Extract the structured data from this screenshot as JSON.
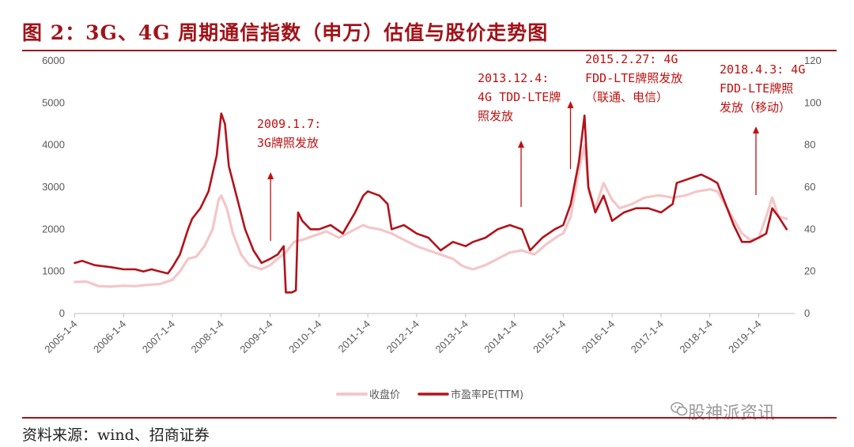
{
  "figure": {
    "title": "图 2：3G、4G 周期通信指数（申万）估值与股价走势图",
    "source": "资料来源：wind、招商证券",
    "watermark": "股神派资讯"
  },
  "colors": {
    "accent": "#a0141a",
    "close_series": "#f4c6c8",
    "pe_series": "#b3121a",
    "annotation": "#c01010"
  },
  "icons": {
    "watermark_icon": "wechat-icon"
  },
  "chart_data": {
    "type": "line",
    "x_ticks": [
      "2005-1-4",
      "2006-1-4",
      "2007-1-4",
      "2008-1-4",
      "2009-1-4",
      "2010-1-4",
      "2011-1-4",
      "2012-1-4",
      "2013-1-4",
      "2014-1-4",
      "2015-1-4",
      "2016-1-4",
      "2017-1-4",
      "2018-1-4",
      "2019-1-4"
    ],
    "x_range": [
      "2005-01-01",
      "2019-09-30"
    ],
    "y_left": {
      "ticks": [
        "0",
        "1000",
        "2000",
        "3000",
        "4000",
        "5000",
        "6000"
      ],
      "range": [
        0,
        6000
      ]
    },
    "y_right": {
      "ticks": [
        "0",
        "20",
        "40",
        "60",
        "80",
        "100",
        "120"
      ],
      "range": [
        0,
        120
      ]
    },
    "legend_position": "bottom",
    "grid": false,
    "series": [
      {
        "name": "收盘价",
        "axis": "left",
        "points": [
          [
            "2005-01-04",
            750
          ],
          [
            "2005-04-01",
            760
          ],
          [
            "2005-07-01",
            650
          ],
          [
            "2005-10-01",
            640
          ],
          [
            "2006-01-04",
            660
          ],
          [
            "2006-04-01",
            650
          ],
          [
            "2006-07-01",
            680
          ],
          [
            "2006-10-01",
            700
          ],
          [
            "2007-01-04",
            800
          ],
          [
            "2007-03-01",
            1000
          ],
          [
            "2007-05-01",
            1300
          ],
          [
            "2007-07-01",
            1350
          ],
          [
            "2007-09-01",
            1600
          ],
          [
            "2007-11-01",
            2000
          ],
          [
            "2007-12-15",
            2700
          ],
          [
            "2008-01-04",
            2800
          ],
          [
            "2008-02-15",
            2500
          ],
          [
            "2008-04-01",
            1900
          ],
          [
            "2008-06-01",
            1400
          ],
          [
            "2008-08-01",
            1150
          ],
          [
            "2008-11-01",
            1050
          ],
          [
            "2009-01-04",
            1150
          ],
          [
            "2009-03-01",
            1300
          ],
          [
            "2009-05-01",
            1450
          ],
          [
            "2009-07-01",
            1700
          ],
          [
            "2009-09-01",
            1750
          ],
          [
            "2009-12-01",
            1850
          ],
          [
            "2010-03-01",
            1950
          ],
          [
            "2010-06-01",
            1800
          ],
          [
            "2010-09-01",
            1950
          ],
          [
            "2010-12-01",
            2100
          ],
          [
            "2011-01-04",
            2050
          ],
          [
            "2011-04-01",
            2000
          ],
          [
            "2011-07-01",
            1900
          ],
          [
            "2011-10-01",
            1750
          ],
          [
            "2012-01-04",
            1600
          ],
          [
            "2012-04-01",
            1500
          ],
          [
            "2012-07-01",
            1400
          ],
          [
            "2012-10-01",
            1300
          ],
          [
            "2012-12-01",
            1150
          ],
          [
            "2013-01-04",
            1100
          ],
          [
            "2013-03-01",
            1050
          ],
          [
            "2013-06-01",
            1150
          ],
          [
            "2013-09-01",
            1300
          ],
          [
            "2013-12-01",
            1450
          ],
          [
            "2014-03-01",
            1500
          ],
          [
            "2014-06-01",
            1400
          ],
          [
            "2014-09-01",
            1650
          ],
          [
            "2014-12-01",
            1850
          ],
          [
            "2015-01-04",
            1900
          ],
          [
            "2015-03-01",
            2300
          ],
          [
            "2015-05-01",
            3400
          ],
          [
            "2015-06-12",
            4000
          ],
          [
            "2015-07-15",
            2900
          ],
          [
            "2015-09-01",
            2500
          ],
          [
            "2015-11-01",
            3100
          ],
          [
            "2016-01-04",
            2700
          ],
          [
            "2016-03-01",
            2500
          ],
          [
            "2016-06-01",
            2600
          ],
          [
            "2016-09-01",
            2750
          ],
          [
            "2016-12-01",
            2800
          ],
          [
            "2017-01-04",
            2800
          ],
          [
            "2017-04-01",
            2750
          ],
          [
            "2017-07-01",
            2800
          ],
          [
            "2017-10-01",
            2900
          ],
          [
            "2018-01-04",
            2950
          ],
          [
            "2018-03-01",
            2900
          ],
          [
            "2018-06-01",
            2400
          ],
          [
            "2018-09-01",
            1900
          ],
          [
            "2018-11-01",
            1750
          ],
          [
            "2019-01-04",
            1800
          ],
          [
            "2019-03-01",
            2300
          ],
          [
            "2019-04-15",
            2750
          ],
          [
            "2019-06-01",
            2300
          ],
          [
            "2019-08-01",
            2250
          ]
        ]
      },
      {
        "name": "市盈率PE(TTM)",
        "axis": "right",
        "points": [
          [
            "2005-01-04",
            24
          ],
          [
            "2005-03-01",
            25
          ],
          [
            "2005-06-01",
            23
          ],
          [
            "2005-10-01",
            22
          ],
          [
            "2006-01-04",
            21
          ],
          [
            "2006-04-01",
            21
          ],
          [
            "2006-06-01",
            20
          ],
          [
            "2006-08-01",
            21
          ],
          [
            "2006-10-01",
            20
          ],
          [
            "2006-12-01",
            19
          ],
          [
            "2007-01-04",
            22
          ],
          [
            "2007-03-01",
            28
          ],
          [
            "2007-05-01",
            40
          ],
          [
            "2007-06-01",
            45
          ],
          [
            "2007-08-01",
            50
          ],
          [
            "2007-10-01",
            58
          ],
          [
            "2007-12-01",
            75
          ],
          [
            "2008-01-04",
            95
          ],
          [
            "2008-02-01",
            90
          ],
          [
            "2008-03-01",
            70
          ],
          [
            "2008-05-01",
            55
          ],
          [
            "2008-07-01",
            40
          ],
          [
            "2008-09-01",
            30
          ],
          [
            "2008-11-01",
            24
          ],
          [
            "2009-01-04",
            26
          ],
          [
            "2009-03-01",
            28
          ],
          [
            "2009-04-15",
            32
          ],
          [
            "2009-05-01",
            10
          ],
          [
            "2009-06-15",
            10
          ],
          [
            "2009-07-15",
            11
          ],
          [
            "2009-08-01",
            48
          ],
          [
            "2009-09-01",
            44
          ],
          [
            "2009-11-01",
            40
          ],
          [
            "2010-01-04",
            40
          ],
          [
            "2010-04-01",
            42
          ],
          [
            "2010-07-01",
            38
          ],
          [
            "2010-10-01",
            48
          ],
          [
            "2010-12-01",
            56
          ],
          [
            "2011-01-04",
            58
          ],
          [
            "2011-04-01",
            56
          ],
          [
            "2011-06-01",
            52
          ],
          [
            "2011-07-01",
            40
          ],
          [
            "2011-10-01",
            42
          ],
          [
            "2012-01-04",
            38
          ],
          [
            "2012-04-01",
            36
          ],
          [
            "2012-07-01",
            30
          ],
          [
            "2012-10-01",
            34
          ],
          [
            "2013-01-04",
            32
          ],
          [
            "2013-03-01",
            34
          ],
          [
            "2013-06-01",
            36
          ],
          [
            "2013-09-01",
            40
          ],
          [
            "2013-12-01",
            42
          ],
          [
            "2014-03-01",
            40
          ],
          [
            "2014-05-01",
            30
          ],
          [
            "2014-08-01",
            36
          ],
          [
            "2014-11-01",
            40
          ],
          [
            "2015-01-04",
            42
          ],
          [
            "2015-03-01",
            52
          ],
          [
            "2015-05-01",
            72
          ],
          [
            "2015-06-12",
            94
          ],
          [
            "2015-07-10",
            60
          ],
          [
            "2015-09-01",
            48
          ],
          [
            "2015-11-01",
            56
          ],
          [
            "2016-01-04",
            44
          ],
          [
            "2016-04-01",
            48
          ],
          [
            "2016-07-01",
            50
          ],
          [
            "2016-10-01",
            50
          ],
          [
            "2017-01-04",
            48
          ],
          [
            "2017-04-01",
            52
          ],
          [
            "2017-05-01",
            62
          ],
          [
            "2017-08-01",
            64
          ],
          [
            "2017-11-01",
            66
          ],
          [
            "2018-01-04",
            64
          ],
          [
            "2018-03-01",
            62
          ],
          [
            "2018-05-01",
            52
          ],
          [
            "2018-07-01",
            42
          ],
          [
            "2018-09-01",
            34
          ],
          [
            "2018-11-01",
            34
          ],
          [
            "2019-01-04",
            36
          ],
          [
            "2019-03-01",
            38
          ],
          [
            "2019-04-15",
            50
          ],
          [
            "2019-06-01",
            46
          ],
          [
            "2019-08-01",
            40
          ]
        ]
      }
    ],
    "annotations": [
      {
        "lines": [
          "2009.1.7:",
          "3G牌照发放"
        ],
        "arrow_date": "2009-01-07"
      },
      {
        "lines": [
          "2013.12.4:",
          "4G TDD-LTE牌",
          "照发放"
        ],
        "arrow_date": "2013-12-04"
      },
      {
        "lines": [
          "2015.2.27: 4G",
          "FDD-LTE牌照发放",
          "（联通、电信）"
        ],
        "arrow_date": "2015-02-27"
      },
      {
        "lines": [
          "2018.4.3: 4G",
          "FDD-LTE牌照",
          "发放（移动）"
        ],
        "arrow_date": "2018-04-03"
      }
    ]
  }
}
